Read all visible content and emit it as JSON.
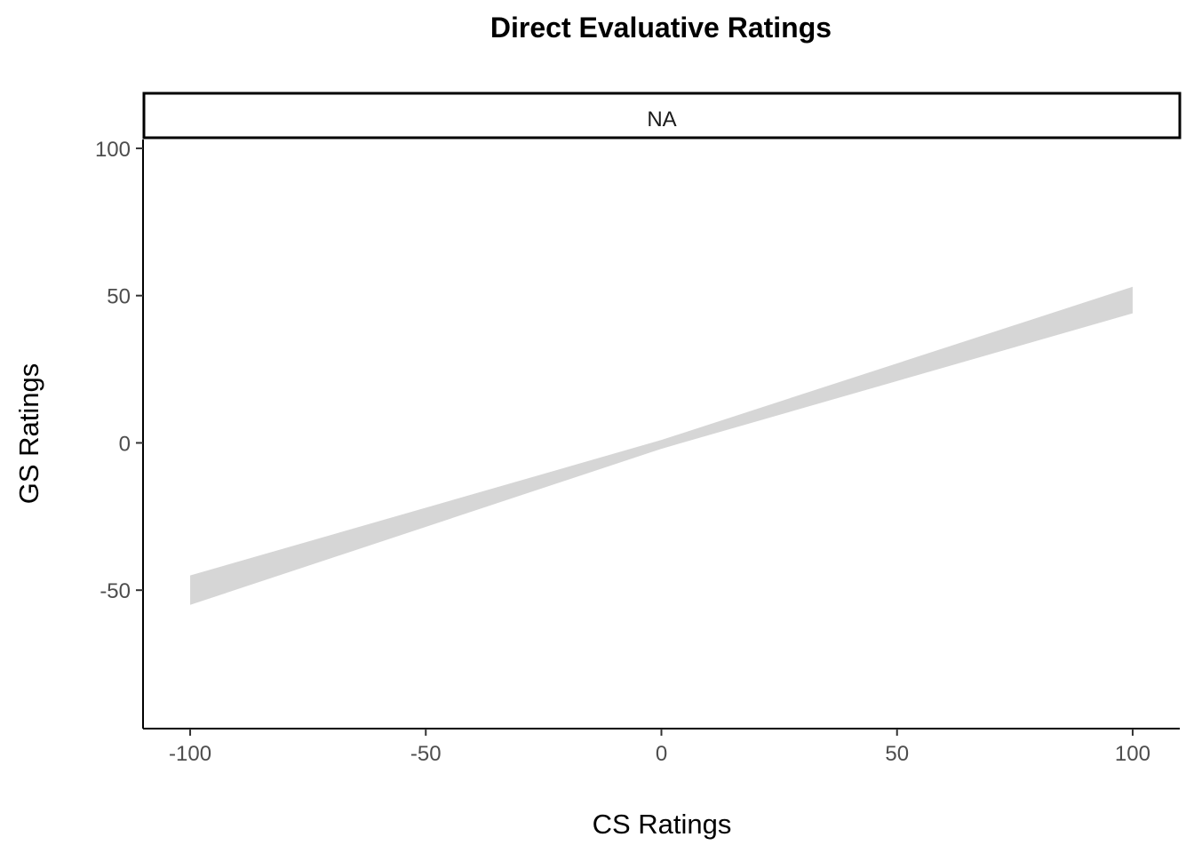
{
  "chart_data": {
    "type": "area",
    "title": "Direct Evaluative Ratings",
    "facet_label": "NA",
    "xlabel": "CS Ratings",
    "ylabel": "GS Ratings",
    "xlim": [
      -110,
      110
    ],
    "ylim": [
      -97,
      103
    ],
    "x_ticks": [
      -100,
      -50,
      0,
      50,
      100
    ],
    "y_ticks": [
      -50,
      0,
      50,
      100
    ],
    "x_tick_labels": [
      "-100",
      "-50",
      "0",
      "50",
      "100"
    ],
    "y_tick_labels": [
      "-50",
      "0",
      "50",
      "100"
    ],
    "grid": false,
    "series": [
      {
        "x": [
          -100,
          0,
          100
        ],
        "lower": [
          -55,
          -2,
          44
        ],
        "upper": [
          -45,
          1,
          53
        ]
      }
    ],
    "ribbon_color": "#d6d6d6"
  }
}
